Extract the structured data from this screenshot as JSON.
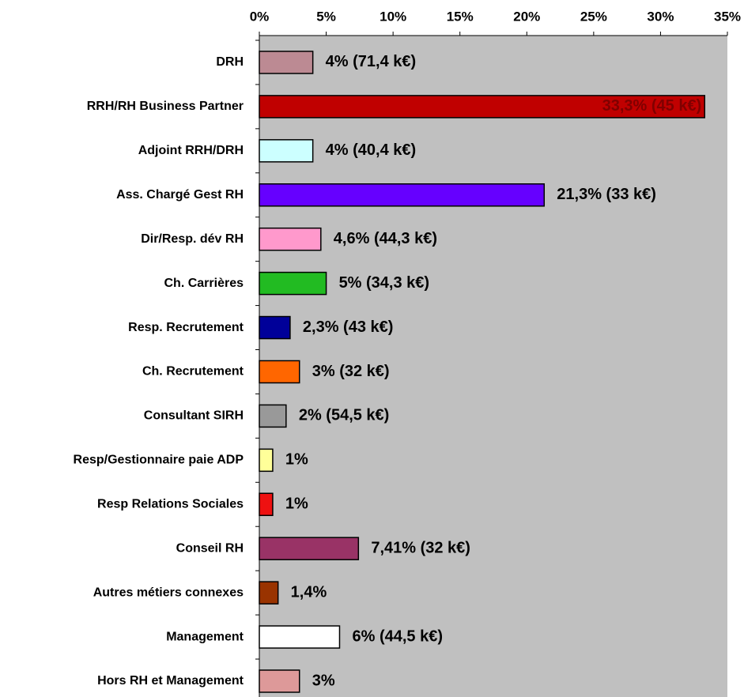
{
  "chart_data": {
    "type": "bar",
    "orientation": "horizontal",
    "categories": [
      "DRH",
      "RRH/RH Business Partner",
      "Adjoint RRH/DRH",
      "Ass. Chargé Gest RH",
      "Dir/Resp. dév RH",
      "Ch. Carrières",
      "Resp. Recrutement",
      "Ch. Recrutement",
      "Consultant SIRH",
      "Resp/Gestionnaire paie ADP",
      "Resp Relations Sociales",
      "Conseil RH",
      "Autres métiers connexes",
      "Management",
      "Hors RH et Management"
    ],
    "values": [
      4,
      33.3,
      4,
      21.3,
      4.6,
      5,
      2.3,
      3,
      2,
      1,
      1,
      7.41,
      1.4,
      6,
      3
    ],
    "value_labels": [
      "4% (71,4 k€)",
      "33,3% (45 k€)",
      "4% (40,4 k€)",
      "21,3% (33 k€)",
      "4,6% (44,3 k€)",
      "5% (34,3 k€)",
      "2,3% (43 k€)",
      "3% (32 k€)",
      "2% (54,5 k€)",
      "1%",
      "1%",
      "7,41% (32 k€)",
      "1,4%",
      "6% (44,5 k€)",
      "3%"
    ],
    "colors": [
      "#bc8a93",
      "#c00000",
      "#ccffff",
      "#6600ff",
      "#ff99cc",
      "#22bb22",
      "#000099",
      "#ff6600",
      "#999999",
      "#ffff99",
      "#ee1111",
      "#993366",
      "#993300",
      "#ffffff",
      "#dd9999"
    ],
    "xlim": [
      0,
      35
    ],
    "xticks": [
      {
        "value": 0,
        "label": "0%"
      },
      {
        "value": 5,
        "label": "5%"
      },
      {
        "value": 10,
        "label": "10%"
      },
      {
        "value": 15,
        "label": "15%"
      },
      {
        "value": 20,
        "label": "20%"
      },
      {
        "value": 25,
        "label": "25%"
      },
      {
        "value": 30,
        "label": "30%"
      },
      {
        "value": 35,
        "label": "35%"
      }
    ],
    "plot_background": "#c0c0c0"
  }
}
